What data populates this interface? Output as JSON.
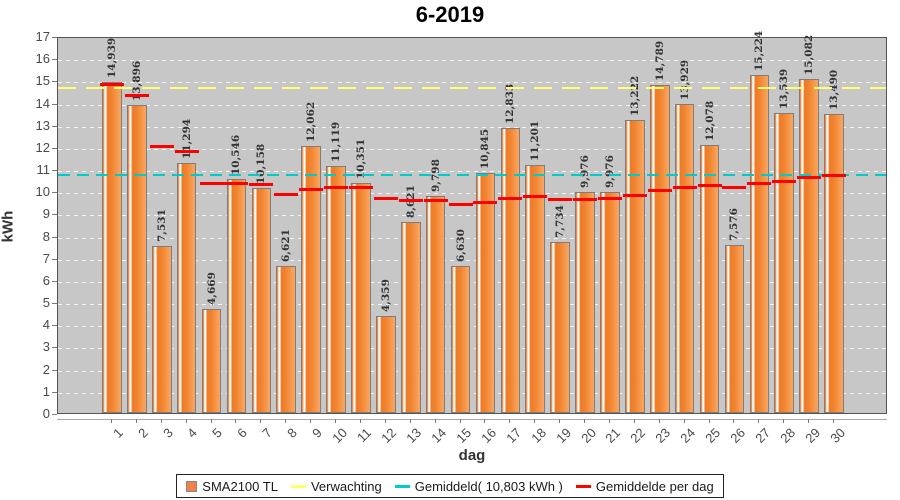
{
  "title": "6-2019",
  "legend": {
    "items": [
      {
        "label": "SMA2100 TL",
        "swatch": "bar",
        "color": "#f08149"
      },
      {
        "label": "Verwachting",
        "swatch": "line",
        "color": "#ffff66"
      },
      {
        "label": "Gemiddeld( 10,803 kWh )",
        "swatch": "line",
        "color": "#00cbcb"
      },
      {
        "label": "Gemiddelde per dag",
        "swatch": "line",
        "color": "#fe0000"
      }
    ]
  },
  "chart_data": {
    "type": "bar",
    "title": "6-2019",
    "xlabel": "dag",
    "ylabel": "kWh",
    "ylim": [
      0,
      17
    ],
    "y_ticks": [
      0,
      1,
      2,
      3,
      4,
      5,
      6,
      7,
      8,
      9,
      10,
      11,
      12,
      13,
      14,
      15,
      16,
      17
    ],
    "grid": "white-dashed",
    "legend_position": "bottom",
    "categories": [
      "1",
      "2",
      "3",
      "4",
      "5",
      "6",
      "7",
      "8",
      "9",
      "10",
      "11",
      "12",
      "13",
      "14",
      "15",
      "16",
      "17",
      "18",
      "19",
      "20",
      "21",
      "22",
      "23",
      "24",
      "25",
      "26",
      "27",
      "28",
      "29",
      "30"
    ],
    "series": [
      {
        "name": "SMA2100 TL",
        "type": "bar",
        "color_main": "#f1842f",
        "values": [
          14.939,
          13.896,
          7.531,
          11.294,
          4.669,
          10.546,
          10.158,
          6.621,
          12.062,
          11.119,
          10.351,
          4.359,
          8.621,
          9.798,
          6.63,
          10.845,
          12.833,
          11.201,
          7.734,
          9.976,
          9.976,
          13.222,
          14.789,
          13.929,
          12.078,
          7.576,
          15.224,
          13.539,
          15.082,
          13.49
        ],
        "value_labels": [
          "14,939",
          "13,896",
          "7,531",
          "11,294",
          "4,669",
          "10,546",
          "10,158",
          "6,621",
          "12,062",
          "11,119",
          "10,351",
          "4,359",
          "8,621",
          "9,798",
          "6,630",
          "10,845",
          "12,833",
          "11,201",
          "7,734",
          "9,976",
          "9,976",
          "13,222",
          "14,789",
          "13,929",
          "12,078",
          "7,576",
          "15,224",
          "13,539",
          "15,082",
          "13,490"
        ]
      },
      {
        "name": "Verwachting",
        "type": "hline",
        "color": "#ffff66",
        "value": 14.75
      },
      {
        "name": "Gemiddeld",
        "type": "hline",
        "color": "#00cbcb",
        "value": 10.803
      },
      {
        "name": "Gemiddelde per dag",
        "type": "segments",
        "color": "#fe0000",
        "values": [
          14.939,
          14.418,
          12.122,
          11.915,
          10.466,
          10.479,
          10.433,
          9.957,
          10.191,
          10.284,
          10.29,
          9.795,
          9.705,
          9.712,
          9.506,
          9.59,
          9.781,
          9.86,
          9.748,
          9.759,
          9.77,
          9.926,
          10.138,
          10.296,
          10.367,
          10.26,
          10.444,
          10.554,
          10.71,
          10.803
        ]
      }
    ]
  }
}
